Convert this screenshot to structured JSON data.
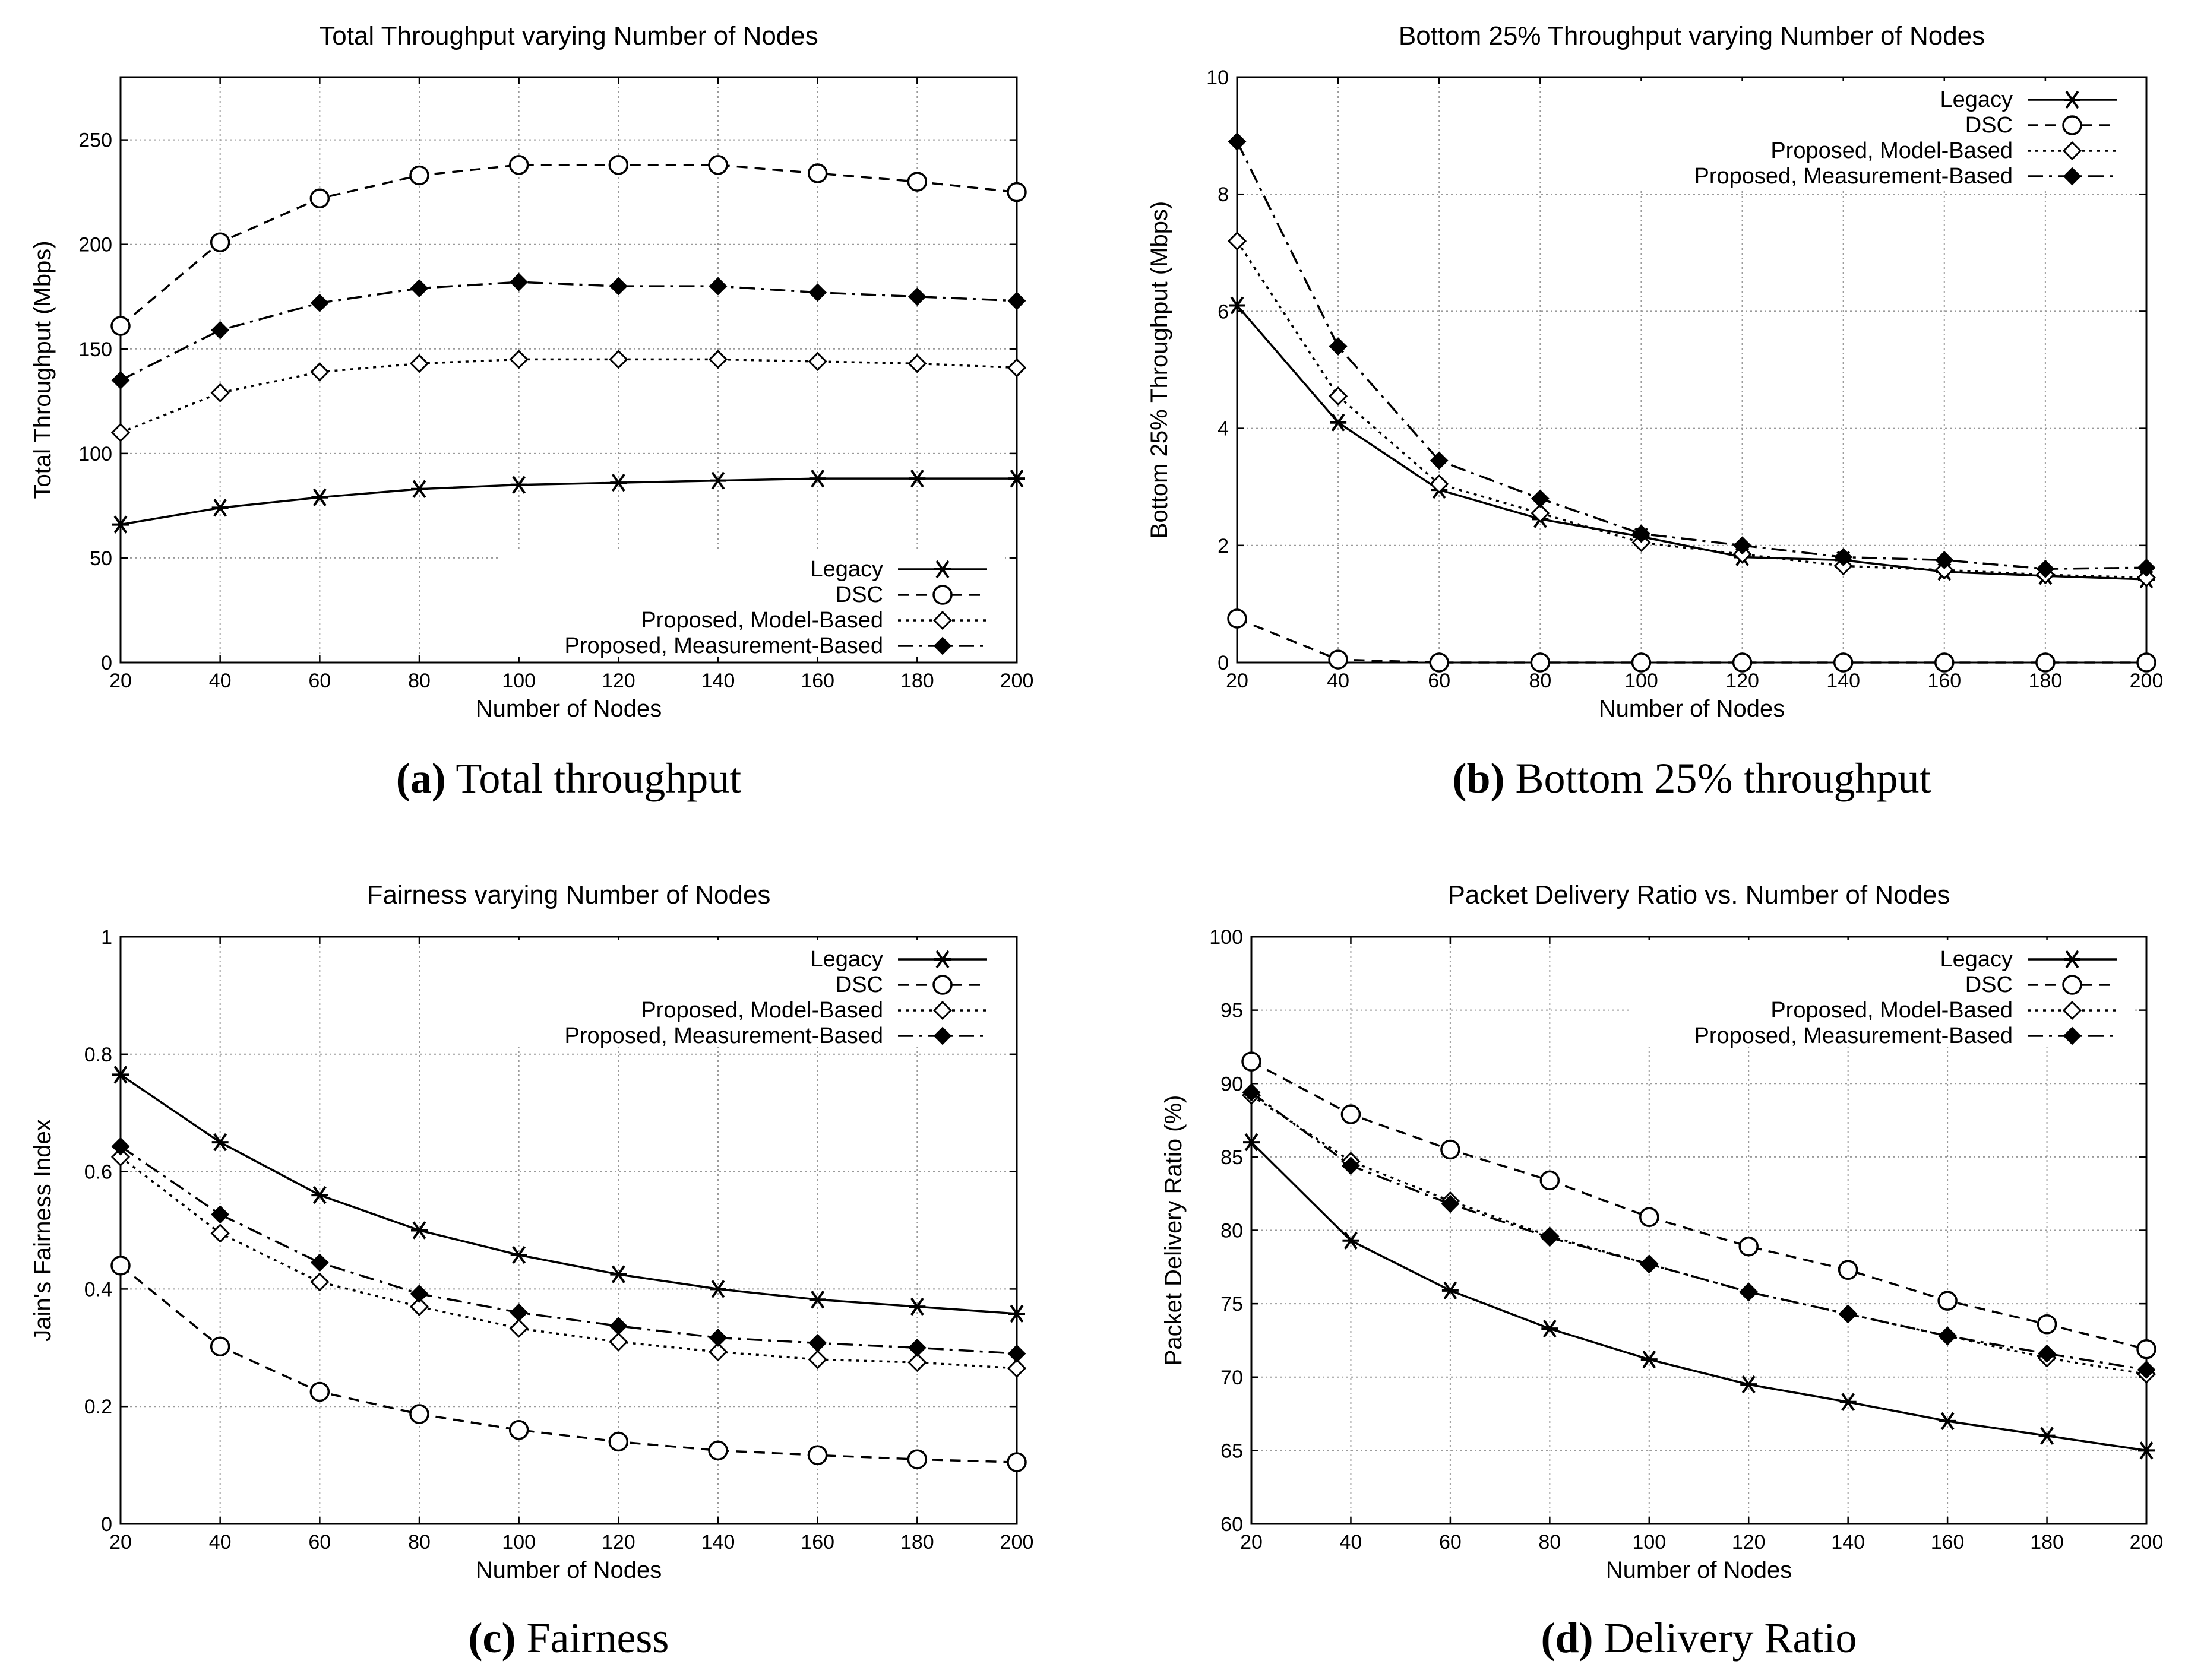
{
  "chart_data": [
    {
      "type": "line",
      "title": "Total Throughput varying Number of Nodes",
      "xlabel": "Number of Nodes",
      "ylabel": "Total Throughput (Mbps)",
      "x": [
        20,
        40,
        60,
        80,
        100,
        120,
        140,
        160,
        180,
        200
      ],
      "xlim": [
        20,
        200
      ],
      "ylim": [
        0,
        280
      ],
      "xticks": [
        20,
        40,
        60,
        80,
        100,
        120,
        140,
        160,
        180,
        200
      ],
      "yticks": [
        0,
        50,
        100,
        150,
        200,
        250
      ],
      "grid": true,
      "legend_position": "bottom-right",
      "caption_bold": "(a)",
      "caption_rest": " Total throughput",
      "series": [
        {
          "name": "Legacy",
          "marker": "star",
          "dash": "solid",
          "values": [
            66,
            74,
            79,
            83,
            85,
            86,
            87,
            88,
            88,
            88
          ]
        },
        {
          "name": "DSC",
          "marker": "circle",
          "dash": "dashed",
          "values": [
            161,
            201,
            222,
            233,
            238,
            238,
            238,
            234,
            230,
            225
          ]
        },
        {
          "name": "Proposed, Model-Based",
          "marker": "diamond-open",
          "dash": "dotted",
          "values": [
            110,
            129,
            139,
            143,
            145,
            145,
            145,
            144,
            143,
            141
          ]
        },
        {
          "name": "Proposed, Measurement-Based",
          "marker": "diamond-filled",
          "dash": "dashdot",
          "values": [
            135,
            159,
            172,
            179,
            182,
            180,
            180,
            177,
            175,
            173
          ]
        }
      ]
    },
    {
      "type": "line",
      "title": "Bottom 25% Throughput varying Number of Nodes",
      "xlabel": "Number of Nodes",
      "ylabel": "Bottom 25% Throughput (Mbps)",
      "x": [
        20,
        40,
        60,
        80,
        100,
        120,
        140,
        160,
        180,
        200
      ],
      "xlim": [
        20,
        200
      ],
      "ylim": [
        0,
        10
      ],
      "xticks": [
        20,
        40,
        60,
        80,
        100,
        120,
        140,
        160,
        180,
        200
      ],
      "yticks": [
        0,
        2,
        4,
        6,
        8,
        10
      ],
      "grid": true,
      "legend_position": "top-right",
      "caption_bold": "(b)",
      "caption_rest": " Bottom 25% throughput",
      "series": [
        {
          "name": "Legacy",
          "marker": "star",
          "dash": "solid",
          "values": [
            6.1,
            4.1,
            2.95,
            2.45,
            2.15,
            1.8,
            1.75,
            1.55,
            1.48,
            1.42
          ]
        },
        {
          "name": "DSC",
          "marker": "circle",
          "dash": "dashed",
          "values": [
            0.75,
            0.05,
            0,
            0,
            0,
            0,
            0,
            0,
            0,
            0
          ]
        },
        {
          "name": "Proposed, Model-Based",
          "marker": "diamond-open",
          "dash": "dotted",
          "values": [
            7.2,
            4.55,
            3.05,
            2.55,
            2.05,
            1.85,
            1.65,
            1.58,
            1.5,
            1.45
          ]
        },
        {
          "name": "Proposed, Measurement-Based",
          "marker": "diamond-filled",
          "dash": "dashdot",
          "values": [
            8.9,
            5.4,
            3.45,
            2.8,
            2.2,
            2.0,
            1.8,
            1.75,
            1.6,
            1.62
          ]
        }
      ]
    },
    {
      "type": "line",
      "title": "Fairness varying Number of Nodes",
      "xlabel": "Number of Nodes",
      "ylabel": "Jain's Fairness Index",
      "x": [
        20,
        40,
        60,
        80,
        100,
        120,
        140,
        160,
        180,
        200
      ],
      "xlim": [
        20,
        200
      ],
      "ylim": [
        0,
        1
      ],
      "xticks": [
        20,
        40,
        60,
        80,
        100,
        120,
        140,
        160,
        180,
        200
      ],
      "yticks": [
        0,
        0.2,
        0.4,
        0.6,
        0.8,
        1
      ],
      "grid": true,
      "legend_position": "top-right",
      "caption_bold": "(c)",
      "caption_rest": " Fairness",
      "series": [
        {
          "name": "Legacy",
          "marker": "star",
          "dash": "solid",
          "values": [
            0.765,
            0.65,
            0.56,
            0.5,
            0.458,
            0.425,
            0.4,
            0.382,
            0.37,
            0.358
          ]
        },
        {
          "name": "DSC",
          "marker": "circle",
          "dash": "dashed",
          "values": [
            0.44,
            0.302,
            0.225,
            0.187,
            0.16,
            0.14,
            0.125,
            0.117,
            0.11,
            0.105
          ]
        },
        {
          "name": "Proposed, Model-Based",
          "marker": "diamond-open",
          "dash": "dotted",
          "values": [
            0.625,
            0.495,
            0.412,
            0.37,
            0.333,
            0.31,
            0.293,
            0.28,
            0.275,
            0.265
          ]
        },
        {
          "name": "Proposed, Measurement-Based",
          "marker": "diamond-filled",
          "dash": "dashdot",
          "values": [
            0.643,
            0.527,
            0.445,
            0.392,
            0.36,
            0.337,
            0.317,
            0.308,
            0.3,
            0.29
          ]
        }
      ]
    },
    {
      "type": "line",
      "title": "Packet Delivery Ratio vs. Number of Nodes",
      "xlabel": "Number of Nodes",
      "ylabel": "Packet Delivery Ratio (%)",
      "x": [
        20,
        40,
        60,
        80,
        100,
        120,
        140,
        160,
        180,
        200
      ],
      "xlim": [
        20,
        200
      ],
      "ylim": [
        60,
        100
      ],
      "xticks": [
        20,
        40,
        60,
        80,
        100,
        120,
        140,
        160,
        180,
        200
      ],
      "yticks": [
        60,
        65,
        70,
        75,
        80,
        85,
        90,
        95,
        100
      ],
      "grid": true,
      "legend_position": "top-right",
      "caption_bold": "(d)",
      "caption_rest": " Delivery Ratio",
      "series": [
        {
          "name": "Legacy",
          "marker": "star",
          "dash": "solid",
          "values": [
            86.0,
            79.3,
            75.9,
            73.3,
            71.2,
            69.5,
            68.3,
            67.0,
            66.0,
            65.0
          ]
        },
        {
          "name": "DSC",
          "marker": "circle",
          "dash": "dashed",
          "values": [
            91.5,
            87.9,
            85.5,
            83.4,
            80.9,
            78.9,
            77.3,
            75.2,
            73.6,
            71.9
          ]
        },
        {
          "name": "Proposed, Model-Based",
          "marker": "diamond-open",
          "dash": "dotted",
          "values": [
            89.2,
            84.7,
            82.0,
            79.6,
            77.7,
            75.8,
            74.3,
            72.8,
            71.3,
            70.2
          ]
        },
        {
          "name": "Proposed, Measurement-Based",
          "marker": "diamond-filled",
          "dash": "dashdot",
          "values": [
            89.4,
            84.4,
            81.8,
            79.5,
            77.7,
            75.8,
            74.3,
            72.8,
            71.6,
            70.5
          ]
        }
      ]
    }
  ]
}
